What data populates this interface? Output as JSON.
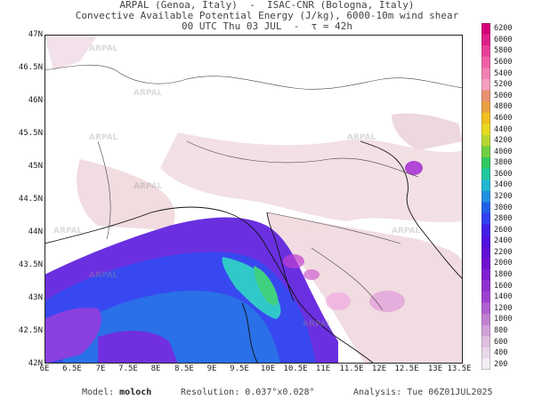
{
  "header": {
    "line1": "ARPAL (Genoa, Italy)  -  ISAC-CNR (Bologna, Italy)",
    "line2": "Convective Available Potential Energy (J/kg), 6000-10m wind shear",
    "line3": "00 UTC Thu 03 JUL  -  τ = 42h"
  },
  "map": {
    "lat_labels": [
      "47N",
      "46.5N",
      "46N",
      "45.5N",
      "45N",
      "44.5N",
      "44N",
      "43.5N",
      "43N",
      "42.5N",
      "42N"
    ],
    "lon_labels": [
      "6E",
      "6.5E",
      "7E",
      "7.5E",
      "8E",
      "8.5E",
      "9E",
      "9.5E",
      "10E",
      "10.5E",
      "11E",
      "11.5E",
      "12E",
      "12.5E",
      "13E",
      "13.5E"
    ],
    "watermark": "ARPAL"
  },
  "colorbar": {
    "labels": [
      "6200",
      "6000",
      "5800",
      "5600",
      "5400",
      "5200",
      "5000",
      "4800",
      "4600",
      "4400",
      "4200",
      "4000",
      "3800",
      "3600",
      "3400",
      "3200",
      "3000",
      "2800",
      "2600",
      "2400",
      "2200",
      "2000",
      "1800",
      "1600",
      "1400",
      "1200",
      "1000",
      "800",
      "600",
      "400",
      "200"
    ],
    "colors": [
      "#d6007a",
      "#e0208a",
      "#e8409a",
      "#f060a8",
      "#f080b4",
      "#f4a0c0",
      "#e89070",
      "#e8a040",
      "#f0c020",
      "#e8d820",
      "#b8d830",
      "#70d040",
      "#30c860",
      "#20c8a0",
      "#20b8d0",
      "#2090e0",
      "#2060e8",
      "#3040f0",
      "#4020e8",
      "#5010e0",
      "#6010d8",
      "#7010d0",
      "#8020d0",
      "#9030d0",
      "#a040d0",
      "#b060d0",
      "#c080d0",
      "#d0a0d8",
      "#e0c0e0",
      "#e8d8e8",
      "#f4eef4"
    ]
  },
  "footer": {
    "model_label": "Model:",
    "model_value": "moloch",
    "resolution_label": "Resolution:",
    "resolution_value": "0.037°x0.028°",
    "analysis_label": "Analysis:",
    "analysis_value": "Tue 06Z01JUL2025"
  }
}
